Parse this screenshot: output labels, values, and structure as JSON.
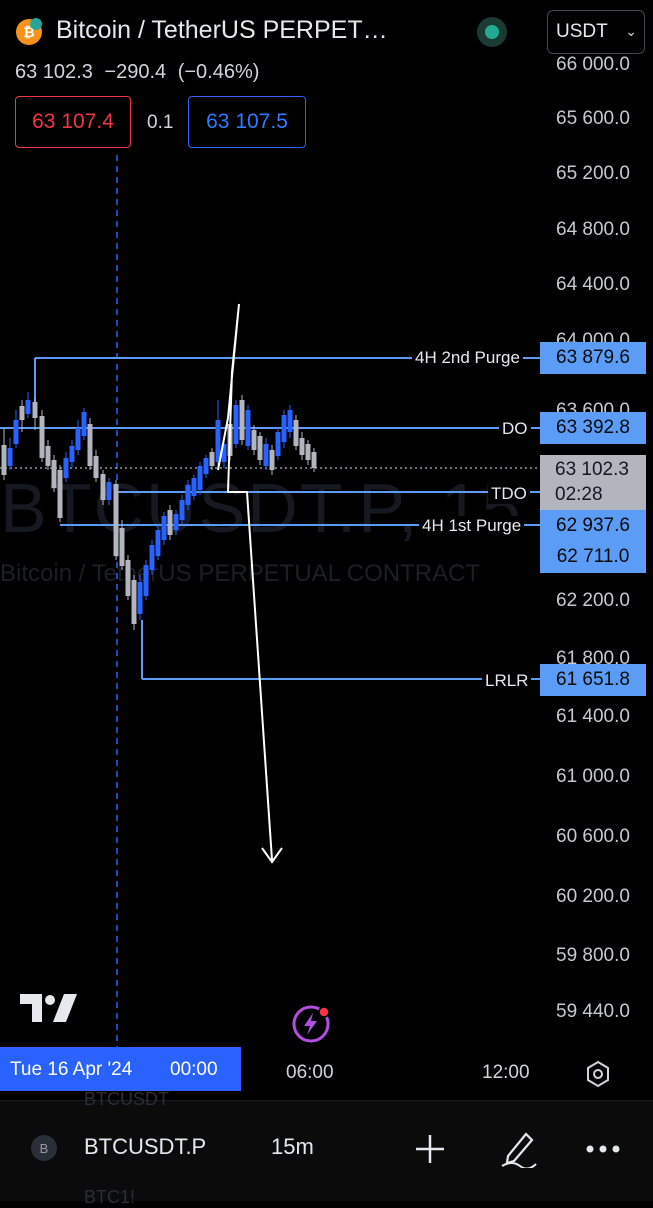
{
  "header": {
    "title": "Bitcoin / TetherUS PERPET…",
    "currency": "USDT",
    "last": "63 102.3",
    "change": "−290.4",
    "change_pct": "(−0.46%)",
    "bid": "63 107.4",
    "spread": "0.1",
    "ask": "63 107.5"
  },
  "watermark": {
    "symbol": "BTCUSDT.P, 15",
    "description": "Bitcoin / TetherUS PERPETUAL CONTRACT"
  },
  "price_axis": [
    "66 000.0",
    "65 600.0",
    "65 200.0",
    "64 800.0",
    "64 400.0",
    "64 000.0",
    "63 600.0",
    "62 200.0",
    "61 800.0",
    "61 400.0",
    "61 000.0",
    "60 600.0",
    "60 200.0",
    "59 800.0",
    "59 440.0"
  ],
  "levels": [
    {
      "name": "4H 2nd Purge",
      "price": "63 879.6"
    },
    {
      "name": "DO",
      "price": "63 392.8"
    },
    {
      "name": "TDO",
      "price": ""
    },
    {
      "name": "4H 1st Purge",
      "price": "62 937.6"
    },
    {
      "name": "",
      "price": "62 711.0"
    },
    {
      "name": "LRLR",
      "price": "61 651.8"
    }
  ],
  "current_price": {
    "price": "63 102.3",
    "countdown": "02:28"
  },
  "time_axis": {
    "cursor_date": "Tue 16 Apr '24",
    "cursor_time": "00:00",
    "labels": [
      "06:00",
      "12:00"
    ]
  },
  "bottom_bar": {
    "avatar_letter": "B",
    "symbol": "BTCUSDT.P",
    "interval": "15m",
    "ghost_above": "BTCUSDT",
    "ghost_below": "BTC1!"
  },
  "colors": {
    "up": "#2962ff",
    "down": "#b2b5be",
    "level_line": "#5b9cf6",
    "tag": "#5b9cf6"
  },
  "icons": [
    "bitcoin-icon",
    "tradingview-logo-icon",
    "alert-bolt-icon",
    "settings-icon",
    "plus-icon",
    "pencil-icon",
    "more-icon",
    "chevron-down-icon"
  ]
}
